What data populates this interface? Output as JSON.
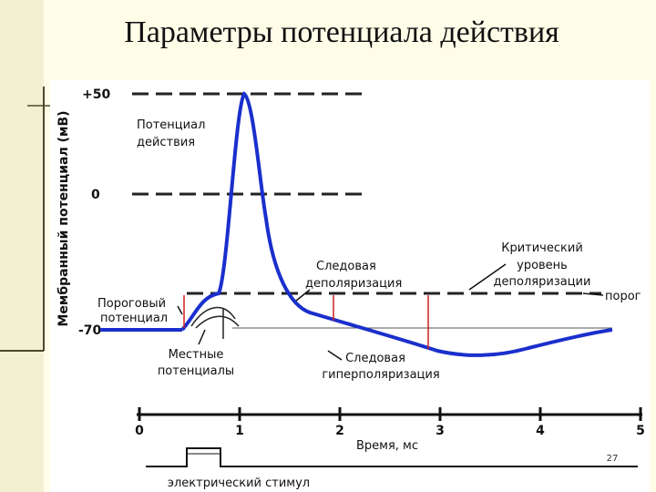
{
  "header": {
    "title": "Параметры потенциала действия",
    "page_number": "27"
  },
  "diagram": {
    "y_axis_label": "Мембранный потенциал (мВ)",
    "y_labels": [
      "+50",
      "0",
      "-70"
    ],
    "x_labels": [
      "0",
      "1",
      "2",
      "3",
      "4",
      "5"
    ],
    "x_axis_label": "Время, мс",
    "annotations": {
      "action_potential": [
        "Потенциал",
        "действия"
      ],
      "critical_level": [
        "Критический",
        "уровень",
        "деполяризации"
      ],
      "threshold": "порог",
      "trace_depolarization": [
        "Следовая",
        "деполяризация"
      ],
      "threshold_potential": [
        "Пороговый",
        "потенциал"
      ],
      "local_potentials": [
        "Местные",
        "потенциалы"
      ],
      "trace_hyperpolarization": [
        "Следовая",
        "гиперполяризация"
      ],
      "stimulus": "электрический стимул"
    }
  }
}
